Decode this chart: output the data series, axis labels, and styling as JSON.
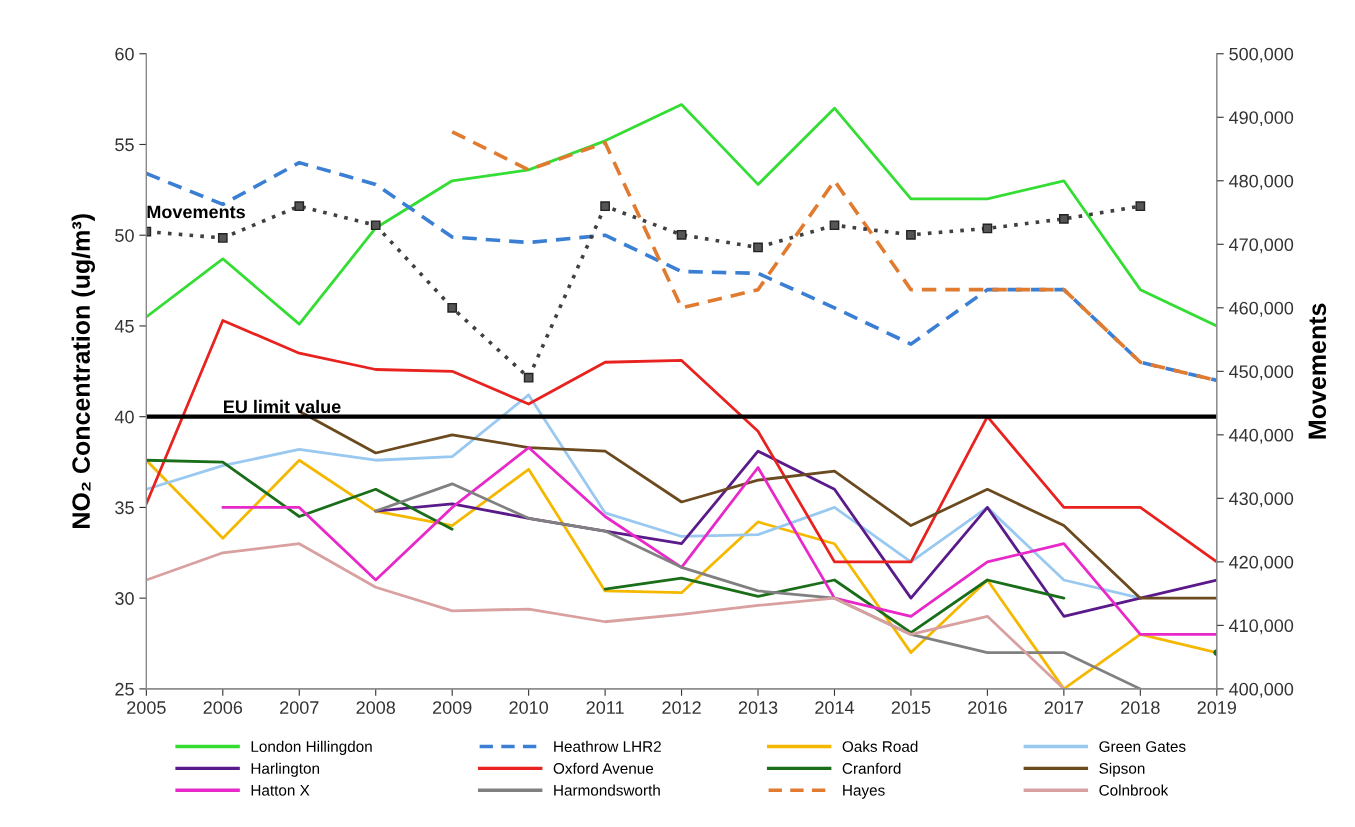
{
  "chart_data": {
    "type": "line",
    "ylabel": "NO₂ Concentration (ug/m³)",
    "y2label": "Movements",
    "x": [
      2005,
      2006,
      2007,
      2008,
      2009,
      2010,
      2011,
      2012,
      2013,
      2014,
      2015,
      2016,
      2017,
      2018,
      2019
    ],
    "xlim": [
      2005,
      2019
    ],
    "xticks": [
      2005,
      2006,
      2007,
      2008,
      2009,
      2010,
      2011,
      2012,
      2013,
      2014,
      2015,
      2016,
      2017,
      2018,
      2019
    ],
    "ylim": [
      25,
      60
    ],
    "yticks": [
      25,
      30,
      35,
      40,
      45,
      50,
      55,
      60
    ],
    "y2lim": [
      400000,
      500000
    ],
    "y2ticks": [
      {
        "value": 400000,
        "label": "400,000"
      },
      {
        "value": 410000,
        "label": "410,000"
      },
      {
        "value": 420000,
        "label": "420,000"
      },
      {
        "value": 430000,
        "label": "430,000"
      },
      {
        "value": 440000,
        "label": "440,000"
      },
      {
        "value": 450000,
        "label": "450,000"
      },
      {
        "value": 460000,
        "label": "460,000"
      },
      {
        "value": 470000,
        "label": "470,000"
      },
      {
        "value": 480000,
        "label": "480,000"
      },
      {
        "value": 490000,
        "label": "490,000"
      },
      {
        "value": 500000,
        "label": "500,000"
      }
    ],
    "legend": "bottom",
    "grid": false,
    "marker": "none",
    "line_style": "solid",
    "ref_lines": [
      {
        "axis": "y",
        "value": 40,
        "label": "EU limit value",
        "color": "#000000"
      }
    ],
    "series": [
      {
        "name": "London Hillingdon",
        "color": "#33dd33",
        "values": [
          45.5,
          48.7,
          45.1,
          50.4,
          53,
          53.6,
          55.2,
          57.2,
          52.8,
          57,
          52,
          52,
          53,
          47,
          45
        ]
      },
      {
        "name": "Heathrow LHR2",
        "color": "#3b7fd4",
        "line_style": "dashed",
        "values": [
          53.4,
          51.7,
          54,
          52.8,
          49.9,
          49.6,
          50,
          48,
          47.9,
          46,
          44,
          47,
          47,
          43,
          42
        ]
      },
      {
        "name": "Oaks Road",
        "color": "#f5b800",
        "values": [
          37.6,
          33.3,
          37.6,
          34.8,
          34,
          37.1,
          30.4,
          30.3,
          34.2,
          33,
          27,
          31,
          25,
          28,
          27
        ]
      },
      {
        "name": "Green Gates",
        "color": "#99c8f0",
        "values": [
          36,
          37.3,
          38.2,
          37.6,
          37.8,
          41.2,
          34.7,
          33.4,
          33.5,
          35,
          32,
          35,
          31,
          30,
          null
        ]
      },
      {
        "name": "Harlington",
        "color": "#5b1a8a",
        "values": [
          null,
          null,
          null,
          34.8,
          35.2,
          34.4,
          33.7,
          33,
          38.1,
          36,
          30,
          35,
          29,
          30,
          31
        ]
      },
      {
        "name": "Oxford Avenue",
        "color": "#e8221f",
        "values": [
          35.2,
          45.3,
          43.5,
          42.6,
          42.5,
          40.7,
          43,
          43.1,
          39.2,
          32,
          32,
          40,
          35,
          35,
          32
        ]
      },
      {
        "name": "Cranford",
        "color": "#1a6e1a",
        "values": [
          37.6,
          37.5,
          34.5,
          36,
          33.8,
          null,
          30.5,
          31.1,
          30.1,
          31,
          28.1,
          31,
          30,
          null,
          27
        ]
      },
      {
        "name": "Sipson",
        "color": "#6b4a1f",
        "values": [
          null,
          null,
          40.3,
          38,
          39,
          38.3,
          38.1,
          35.3,
          36.5,
          37,
          34,
          36,
          34,
          30,
          30
        ]
      },
      {
        "name": "Hatton X",
        "color": "#e828c8",
        "values": [
          null,
          35,
          35,
          31,
          35,
          38.3,
          34.5,
          31.7,
          37.2,
          30,
          29,
          32,
          33,
          28,
          28
        ]
      },
      {
        "name": "Harmondsworth",
        "color": "#808080",
        "values": [
          null,
          null,
          null,
          34.8,
          36.3,
          34.4,
          33.7,
          31.7,
          30.4,
          30,
          28,
          27,
          27,
          25,
          null
        ]
      },
      {
        "name": "Hayes",
        "color": "#e07b30",
        "line_style": "dashed",
        "values": [
          null,
          null,
          null,
          null,
          55.7,
          53.6,
          55.1,
          46,
          47,
          53,
          47,
          47,
          47,
          43,
          42
        ]
      },
      {
        "name": "Colnbrook",
        "color": "#d9a0a0",
        "values": [
          31,
          32.5,
          33,
          30.6,
          29.3,
          29.4,
          28.7,
          29.1,
          29.6,
          30,
          28,
          29,
          25,
          null,
          null
        ]
      },
      {
        "name": "Movements",
        "color": "#404040",
        "axis": "y2",
        "line_style": "dotted",
        "marker": "square",
        "values": [
          472000,
          471000,
          476000,
          473000,
          460000,
          449000,
          476000,
          471500,
          469500,
          473000,
          471500,
          472500,
          474000,
          476000,
          null
        ]
      }
    ]
  }
}
